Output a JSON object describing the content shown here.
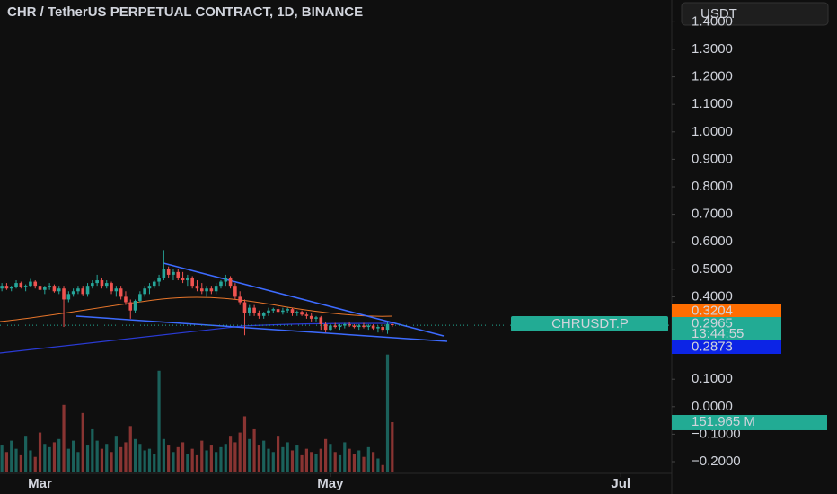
{
  "chart_data": {
    "type": "candlestick",
    "title": "CHR / TetherUS PERPETUAL CONTRACT, 1D, BINANCE",
    "quote_button": "USDT",
    "symbol_label": "CHRUSDT.P",
    "countdown": "13:44:55",
    "up_color": "#26a69a",
    "down_color": "#ef5350",
    "ylim": [
      -0.2425,
      1.4797
    ],
    "yticks": [
      {
        "value": 1.4,
        "label": "1.4000"
      },
      {
        "value": 1.3,
        "label": "1.3000"
      },
      {
        "value": 1.2,
        "label": "1.2000"
      },
      {
        "value": 1.1,
        "label": "1.1000"
      },
      {
        "value": 1.0,
        "label": "1.0000"
      },
      {
        "value": 0.9,
        "label": "0.9000"
      },
      {
        "value": 0.8,
        "label": "0.8000"
      },
      {
        "value": 0.7,
        "label": "0.7000"
      },
      {
        "value": 0.6,
        "label": "0.6000"
      },
      {
        "value": 0.5,
        "label": "0.5000"
      },
      {
        "value": 0.4,
        "label": "0.4000"
      },
      {
        "value": 0.1,
        "label": "0.1000"
      },
      {
        "value": 0,
        "label": "0.0000"
      },
      {
        "value": -0.1,
        "label": "−0.1000"
      },
      {
        "value": -0.2,
        "label": "−0.2000"
      }
    ],
    "xlim": [
      -0.4,
      140.7
    ],
    "xticks": [
      {
        "value": 8,
        "label": "Mar"
      },
      {
        "value": 69,
        "label": "May"
      },
      {
        "value": 130,
        "label": "Jul"
      }
    ],
    "candles": [
      [
        0.43,
        0.45,
        0.42,
        0.44
      ],
      [
        0.44,
        0.45,
        0.425,
        0.43
      ],
      [
        0.43,
        0.44,
        0.42,
        0.435
      ],
      [
        0.435,
        0.46,
        0.43,
        0.45
      ],
      [
        0.45,
        0.455,
        0.43,
        0.435
      ],
      [
        0.435,
        0.445,
        0.42,
        0.44
      ],
      [
        0.44,
        0.465,
        0.435,
        0.455
      ],
      [
        0.455,
        0.46,
        0.43,
        0.44
      ],
      [
        0.44,
        0.45,
        0.42,
        0.425
      ],
      [
        0.425,
        0.44,
        0.41,
        0.435
      ],
      [
        0.435,
        0.45,
        0.425,
        0.44
      ],
      [
        0.44,
        0.445,
        0.415,
        0.42
      ],
      [
        0.42,
        0.44,
        0.41,
        0.43
      ],
      [
        0.43,
        0.44,
        0.29,
        0.39
      ],
      [
        0.39,
        0.42,
        0.38,
        0.41
      ],
      [
        0.41,
        0.43,
        0.4,
        0.42
      ],
      [
        0.42,
        0.44,
        0.41,
        0.43
      ],
      [
        0.43,
        0.44,
        0.405,
        0.41
      ],
      [
        0.41,
        0.45,
        0.4,
        0.44
      ],
      [
        0.44,
        0.46,
        0.43,
        0.45
      ],
      [
        0.45,
        0.48,
        0.44,
        0.46
      ],
      [
        0.46,
        0.47,
        0.43,
        0.44
      ],
      [
        0.44,
        0.46,
        0.43,
        0.45
      ],
      [
        0.45,
        0.455,
        0.41,
        0.42
      ],
      [
        0.42,
        0.44,
        0.4,
        0.43
      ],
      [
        0.43,
        0.44,
        0.39,
        0.4
      ],
      [
        0.4,
        0.42,
        0.37,
        0.38
      ],
      [
        0.38,
        0.39,
        0.32,
        0.35
      ],
      [
        0.35,
        0.39,
        0.34,
        0.385
      ],
      [
        0.385,
        0.42,
        0.38,
        0.41
      ],
      [
        0.41,
        0.44,
        0.4,
        0.43
      ],
      [
        0.43,
        0.45,
        0.41,
        0.44
      ],
      [
        0.44,
        0.46,
        0.43,
        0.455
      ],
      [
        0.455,
        0.48,
        0.44,
        0.47
      ],
      [
        0.47,
        0.57,
        0.46,
        0.5
      ],
      [
        0.5,
        0.51,
        0.47,
        0.48
      ],
      [
        0.48,
        0.5,
        0.46,
        0.49
      ],
      [
        0.49,
        0.5,
        0.46,
        0.47
      ],
      [
        0.47,
        0.49,
        0.45,
        0.46
      ],
      [
        0.46,
        0.48,
        0.44,
        0.47
      ],
      [
        0.47,
        0.475,
        0.43,
        0.44
      ],
      [
        0.44,
        0.46,
        0.42,
        0.43
      ],
      [
        0.43,
        0.45,
        0.41,
        0.42
      ],
      [
        0.42,
        0.44,
        0.4,
        0.43
      ],
      [
        0.43,
        0.44,
        0.41,
        0.42
      ],
      [
        0.42,
        0.45,
        0.41,
        0.44
      ],
      [
        0.44,
        0.46,
        0.43,
        0.455
      ],
      [
        0.455,
        0.48,
        0.44,
        0.47
      ],
      [
        0.47,
        0.475,
        0.43,
        0.44
      ],
      [
        0.44,
        0.45,
        0.39,
        0.4
      ],
      [
        0.4,
        0.42,
        0.37,
        0.38
      ],
      [
        0.38,
        0.39,
        0.26,
        0.34
      ],
      [
        0.34,
        0.37,
        0.33,
        0.36
      ],
      [
        0.36,
        0.37,
        0.33,
        0.34
      ],
      [
        0.34,
        0.35,
        0.32,
        0.33
      ],
      [
        0.33,
        0.345,
        0.32,
        0.34
      ],
      [
        0.34,
        0.36,
        0.33,
        0.35
      ],
      [
        0.35,
        0.36,
        0.34,
        0.355
      ],
      [
        0.355,
        0.365,
        0.34,
        0.345
      ],
      [
        0.345,
        0.36,
        0.335,
        0.35
      ],
      [
        0.35,
        0.36,
        0.34,
        0.355
      ],
      [
        0.355,
        0.36,
        0.33,
        0.34
      ],
      [
        0.34,
        0.35,
        0.33,
        0.345
      ],
      [
        0.345,
        0.35,
        0.33,
        0.335
      ],
      [
        0.335,
        0.345,
        0.32,
        0.33
      ],
      [
        0.33,
        0.34,
        0.31,
        0.32
      ],
      [
        0.32,
        0.33,
        0.31,
        0.325
      ],
      [
        0.325,
        0.33,
        0.28,
        0.3
      ],
      [
        0.3,
        0.31,
        0.27,
        0.28
      ],
      [
        0.28,
        0.3,
        0.275,
        0.295
      ],
      [
        0.295,
        0.305,
        0.285,
        0.29
      ],
      [
        0.29,
        0.3,
        0.28,
        0.295
      ],
      [
        0.295,
        0.305,
        0.285,
        0.3
      ],
      [
        0.3,
        0.31,
        0.29,
        0.295
      ],
      [
        0.295,
        0.3,
        0.285,
        0.29
      ],
      [
        0.29,
        0.3,
        0.28,
        0.295
      ],
      [
        0.295,
        0.305,
        0.285,
        0.29
      ],
      [
        0.29,
        0.3,
        0.28,
        0.295
      ],
      [
        0.295,
        0.3,
        0.28,
        0.285
      ],
      [
        0.285,
        0.295,
        0.27,
        0.29
      ],
      [
        0.29,
        0.3,
        0.27,
        0.28
      ],
      [
        0.28,
        0.31,
        0.265,
        0.3
      ],
      [
        0.3,
        0.305,
        0.29,
        0.2965
      ]
    ],
    "volumes": [
      80,
      60,
      95,
      70,
      50,
      110,
      65,
      45,
      120,
      85,
      75,
      90,
      100,
      205,
      70,
      95,
      60,
      180,
      80,
      130,
      95,
      70,
      85,
      60,
      110,
      75,
      90,
      140,
      100,
      85,
      65,
      70,
      55,
      310,
      100,
      80,
      60,
      75,
      90,
      55,
      70,
      50,
      95,
      65,
      80,
      60,
      75,
      85,
      110,
      90,
      120,
      170,
      100,
      130,
      80,
      95,
      70,
      60,
      110,
      75,
      90,
      65,
      80,
      50,
      70,
      60,
      55,
      70,
      100,
      85,
      60,
      50,
      90,
      70,
      55,
      65,
      45,
      75,
      60,
      40,
      20,
      360,
      151.965
    ],
    "badges": [
      {
        "value": 0.3204,
        "color": "#ff6d00"
      },
      {
        "value": 0.2965,
        "color": "#22ab94"
      },
      {
        "value": 0.2873,
        "color": "#0c24e6"
      }
    ],
    "volume_badge": {
      "value": 151.965,
      "label": "151.965 M",
      "color": "#22ab94"
    }
  }
}
